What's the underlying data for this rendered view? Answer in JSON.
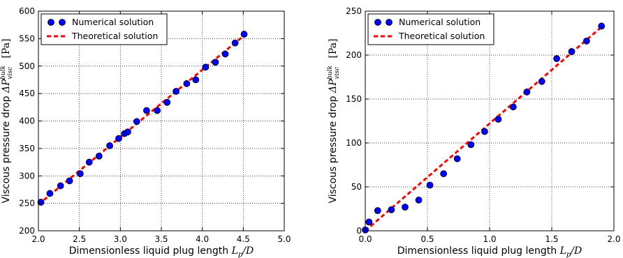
{
  "chart_data": [
    {
      "type": "scatter",
      "title": "",
      "xlabel": "Dimensionless liquid plug length",
      "xlabel_symbol": "Lp/D",
      "ylabel": "Viscous pressure drop",
      "ylabel_symbol": "ΔP_visc^bulk",
      "ylabel_unit": "[Pa]",
      "xlim": [
        2.0,
        5.0
      ],
      "ylim": [
        200,
        600
      ],
      "xticks": [
        "2.0",
        "2.5",
        "3.0",
        "3.5",
        "4.0",
        "4.5",
        "5.0"
      ],
      "yticks": [
        "200",
        "250",
        "300",
        "350",
        "400",
        "450",
        "500",
        "550",
        "600"
      ],
      "grid": true,
      "legend_position": "top-left",
      "series": [
        {
          "name": "Numerical solution",
          "kind": "markers",
          "color": "#0000ff",
          "points": [
            [
              2.03,
              252
            ],
            [
              2.14,
              268
            ],
            [
              2.27,
              282
            ],
            [
              2.38,
              291
            ],
            [
              2.51,
              304
            ],
            [
              2.62,
              325
            ],
            [
              2.74,
              336
            ],
            [
              2.87,
              355
            ],
            [
              2.98,
              368
            ],
            [
              3.05,
              377
            ],
            [
              3.09,
              380
            ],
            [
              3.2,
              399
            ],
            [
              3.32,
              419
            ],
            [
              3.45,
              419
            ],
            [
              3.57,
              434
            ],
            [
              3.68,
              454
            ],
            [
              3.81,
              468
            ],
            [
              3.92,
              475
            ],
            [
              4.04,
              498
            ],
            [
              4.16,
              507
            ],
            [
              4.28,
              522
            ],
            [
              4.4,
              542
            ],
            [
              4.51,
              558
            ]
          ]
        },
        {
          "name": "Theoretical solution",
          "kind": "line",
          "color": "#ff0000",
          "points": [
            [
              2.0,
              248
            ],
            [
              4.52,
              557
            ]
          ]
        }
      ]
    },
    {
      "type": "scatter",
      "title": "",
      "xlabel": "Dimensionless liquid plug length",
      "xlabel_symbol": "Lp/D",
      "ylabel": "Viscous pressure drop",
      "ylabel_symbol": "ΔP_visc^bulk",
      "ylabel_unit": "[Pa]",
      "xlim": [
        0.0,
        2.0
      ],
      "ylim": [
        0,
        250
      ],
      "xticks": [
        "0.0",
        "0.5",
        "1.0",
        "1.5",
        "2.0"
      ],
      "yticks": [
        "0",
        "50",
        "100",
        "150",
        "200",
        "250"
      ],
      "grid": true,
      "legend_position": "top-left",
      "series": [
        {
          "name": "Numerical solution",
          "kind": "markers",
          "color": "#0000ff",
          "points": [
            [
              0.0,
              1
            ],
            [
              0.03,
              10
            ],
            [
              0.1,
              23
            ],
            [
              0.21,
              24
            ],
            [
              0.32,
              27
            ],
            [
              0.43,
              35
            ],
            [
              0.52,
              52
            ],
            [
              0.63,
              65
            ],
            [
              0.74,
              82
            ],
            [
              0.85,
              98
            ],
            [
              0.96,
              113
            ],
            [
              1.07,
              127
            ],
            [
              1.19,
              141
            ],
            [
              1.3,
              158
            ],
            [
              1.42,
              170
            ],
            [
              1.54,
              196
            ],
            [
              1.66,
              204
            ],
            [
              1.78,
              216
            ],
            [
              1.9,
              233
            ]
          ]
        },
        {
          "name": "Theoretical solution",
          "kind": "line",
          "color": "#ff0000",
          "points": [
            [
              0.0,
              0
            ],
            [
              1.9,
              232
            ]
          ]
        }
      ]
    }
  ]
}
